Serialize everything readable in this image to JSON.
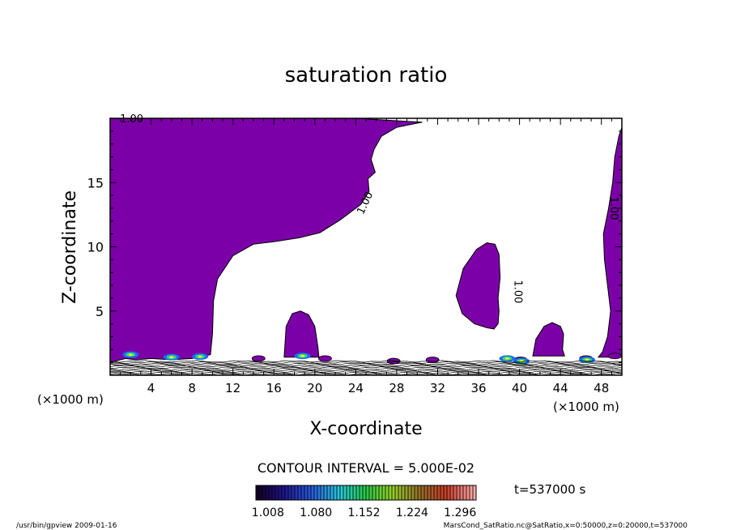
{
  "chart_data": {
    "type": "contour",
    "title": "saturation ratio",
    "xlabel": "X-coordinate",
    "ylabel": "Z-coordinate",
    "x_unit": "(×1000 m)",
    "z_unit": "(×1000 m)",
    "xlim": [
      0,
      50
    ],
    "ylim": [
      0,
      20
    ],
    "x_ticks": [
      4,
      8,
      12,
      16,
      20,
      24,
      28,
      32,
      36,
      40,
      44,
      48
    ],
    "y_ticks": [
      5,
      10,
      15
    ],
    "contour_interval_text": "CONTOUR INTERVAL = 5.000E-02",
    "contour_label": "1.00",
    "time_text": "t=537000 s",
    "colorbar": {
      "ticks": [
        "1.008",
        "1.080",
        "1.152",
        "1.224",
        "1.296"
      ],
      "range": [
        0.99,
        1.32
      ]
    },
    "fill_color": "#7b00a8",
    "footer_left": "/usr/bin/gpview   2009-01-16",
    "footer_right": "MarsCond_SatRatio.nc@SatRatio,x=0:50000,z=0:20000,t=537000"
  }
}
